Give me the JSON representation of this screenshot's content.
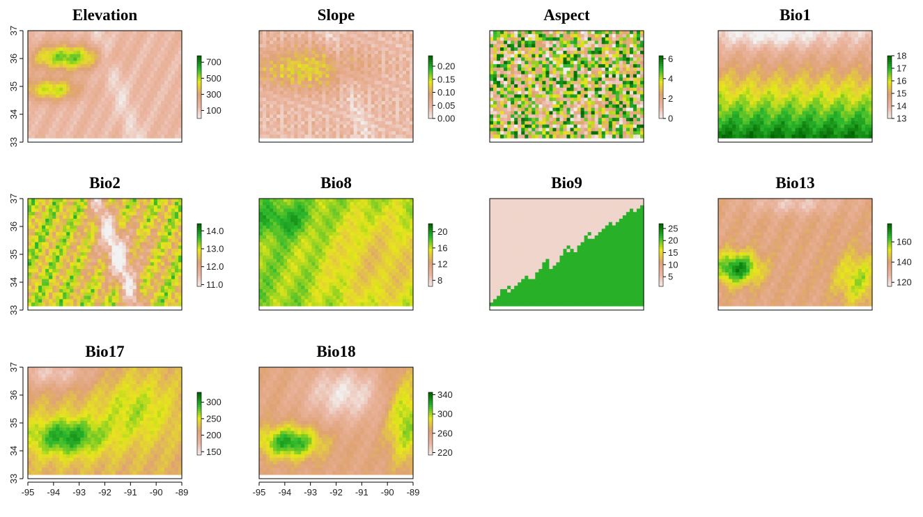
{
  "chart_data": [
    {
      "type": "heatmap",
      "title": "Elevation",
      "legend_ticks": [
        "700",
        "500",
        "300",
        "100"
      ],
      "legend_range": [
        0,
        780
      ],
      "pattern": "elevation",
      "y_ticks": [
        "37",
        "36",
        "35",
        "34",
        "33"
      ]
    },
    {
      "type": "heatmap",
      "title": "Slope",
      "legend_ticks": [
        "0.20",
        "0.15",
        "0.10",
        "0.05",
        "0.00"
      ],
      "legend_range": [
        0,
        0.24
      ],
      "pattern": "slope",
      "y_ticks": []
    },
    {
      "type": "heatmap",
      "title": "Aspect",
      "legend_ticks": [
        "6",
        "4",
        "2",
        "0"
      ],
      "legend_range": [
        0,
        6.3
      ],
      "pattern": "aspect",
      "y_ticks": []
    },
    {
      "type": "heatmap",
      "title": "Bio1",
      "legend_ticks": [
        "18",
        "17",
        "16",
        "15",
        "14",
        "13"
      ],
      "legend_range": [
        13,
        18
      ],
      "pattern": "bio1",
      "y_ticks": []
    },
    {
      "type": "heatmap",
      "title": "Bio2",
      "legend_ticks": [
        "14.0",
        "13.0",
        "12.0",
        "11.0"
      ],
      "legend_range": [
        10.9,
        14.4
      ],
      "pattern": "bio2",
      "y_ticks": [
        "37",
        "36",
        "35",
        "34",
        "33"
      ]
    },
    {
      "type": "heatmap",
      "title": "Bio8",
      "legend_ticks": [
        "20",
        "16",
        "12",
        "8"
      ],
      "legend_range": [
        6.5,
        22
      ],
      "pattern": "bio8",
      "y_ticks": []
    },
    {
      "type": "heatmap",
      "title": "Bio9",
      "legend_ticks": [
        "25",
        "20",
        "15",
        "10",
        "5"
      ],
      "legend_range": [
        1,
        27
      ],
      "pattern": "bio9",
      "y_ticks": []
    },
    {
      "type": "heatmap",
      "title": "Bio13",
      "legend_ticks": [
        "160",
        "140",
        "120"
      ],
      "legend_range": [
        116,
        178
      ],
      "pattern": "bio13",
      "y_ticks": []
    },
    {
      "type": "heatmap",
      "title": "Bio17",
      "legend_ticks": [
        "300",
        "250",
        "200",
        "150"
      ],
      "legend_range": [
        140,
        330
      ],
      "pattern": "bio17",
      "y_ticks": [
        "37",
        "36",
        "35",
        "34",
        "33"
      ],
      "x_ticks": [
        "-95",
        "-94",
        "-93",
        "-92",
        "-91",
        "-90",
        "-89"
      ]
    },
    {
      "type": "heatmap",
      "title": "Bio18",
      "legend_ticks": [
        "340",
        "300",
        "260",
        "220"
      ],
      "legend_range": [
        215,
        345
      ],
      "pattern": "bio18",
      "y_ticks": [],
      "x_ticks": [
        "-95",
        "-94",
        "-93",
        "-92",
        "-91",
        "-90",
        "-89"
      ]
    }
  ],
  "colors": {
    "low": "#f2f2f2",
    "pink": "#ebb7a4",
    "tan": "#dfa274",
    "yellow": "#e6e61a",
    "green": "#2db82e",
    "dark_green": "#006400"
  }
}
